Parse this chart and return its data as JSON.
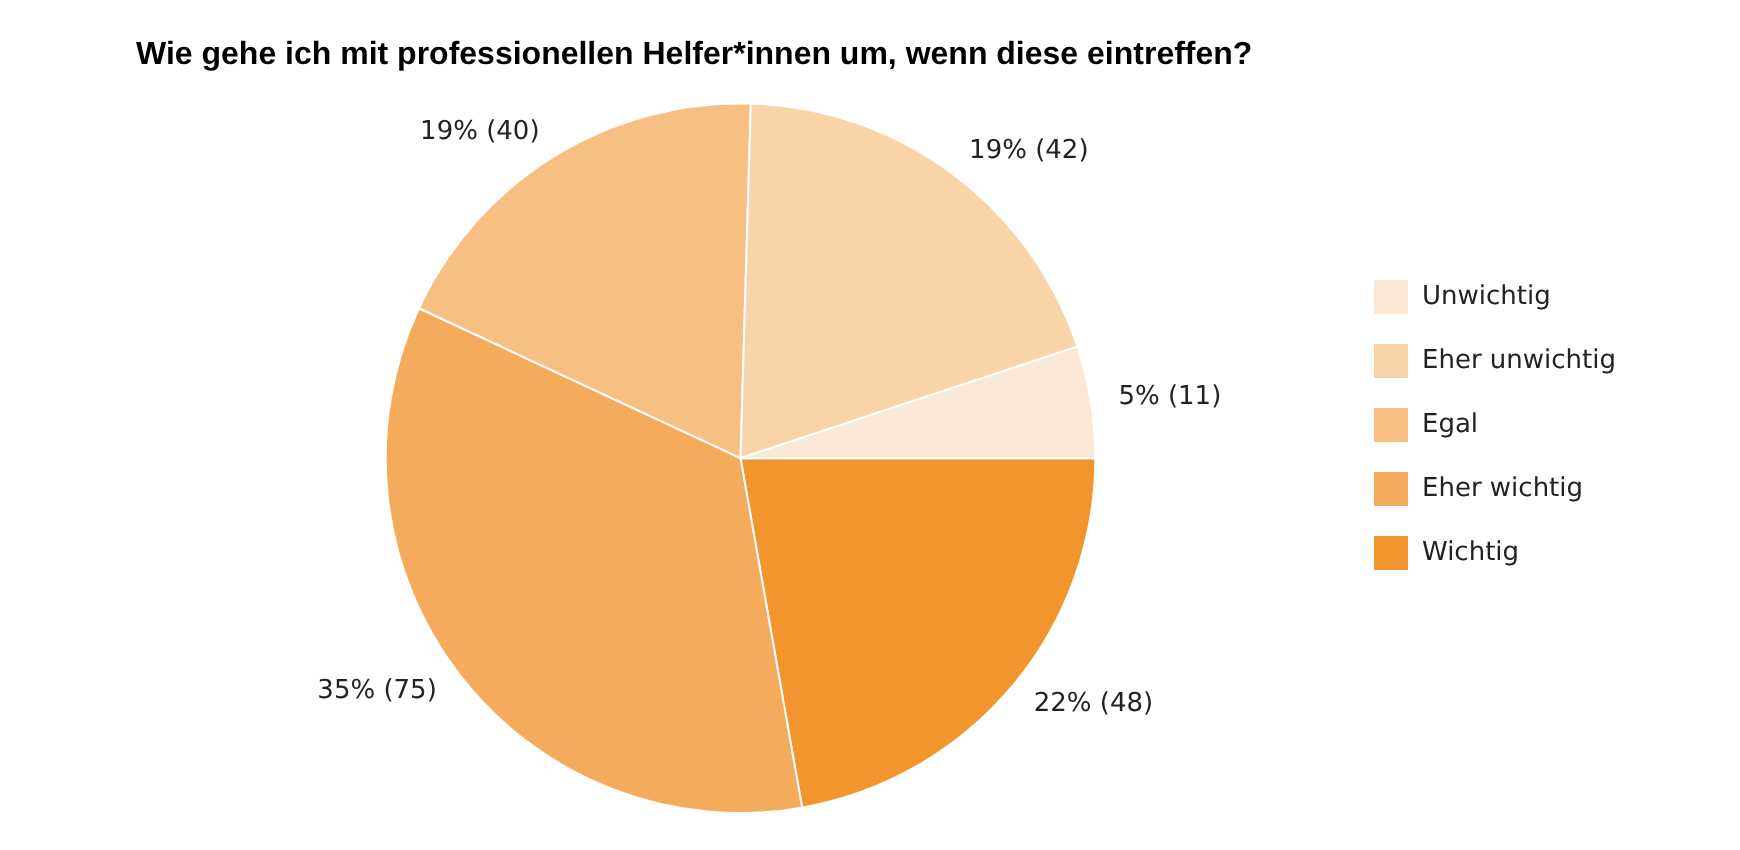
{
  "chart_data": {
    "type": "pie",
    "title": "Wie gehe ich mit professionellen Helfer*innen um, wenn diese eintreffen?",
    "categories": [
      "Unwichtig",
      "Eher unwichtig",
      "Egal",
      "Eher wichtig",
      "Wichtig"
    ],
    "values": [
      11,
      42,
      40,
      75,
      48
    ],
    "colors": [
      "#fbe7d5",
      "#f9d4a9",
      "#f7bf82",
      "#f4ab5c",
      "#f2952f"
    ],
    "value_labels": [
      "5% (11)",
      "19% (42)",
      "19% (40)",
      "35% (75)",
      "22% (48)"
    ],
    "legend": "right"
  }
}
